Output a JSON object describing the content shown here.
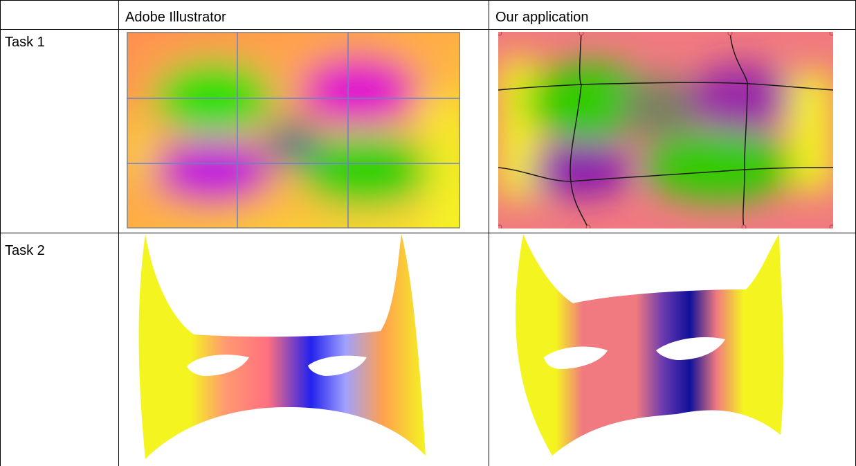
{
  "table": {
    "headers": [
      "",
      "Adobe Illustrator",
      "Our application"
    ],
    "rows": [
      {
        "label": "Task 1",
        "images": [
          "Adobe Illustrator gradient mesh rectangle",
          "Our application gradient mesh rectangle"
        ]
      },
      {
        "label": "Task 2",
        "images": [
          "Adobe Illustrator mask",
          "Our application mask"
        ]
      }
    ]
  },
  "colors": {
    "green": "#22e000",
    "magenta": "#e010d0",
    "purple": "#8a1ab0",
    "orange": "#ff8a50",
    "yellow": "#f4f420",
    "pink": "#f07a80",
    "blue": "#2222ee",
    "navy": "#10109a",
    "grid_blue": "#6a7fc8",
    "grid_dark": "#1a1a1a"
  }
}
